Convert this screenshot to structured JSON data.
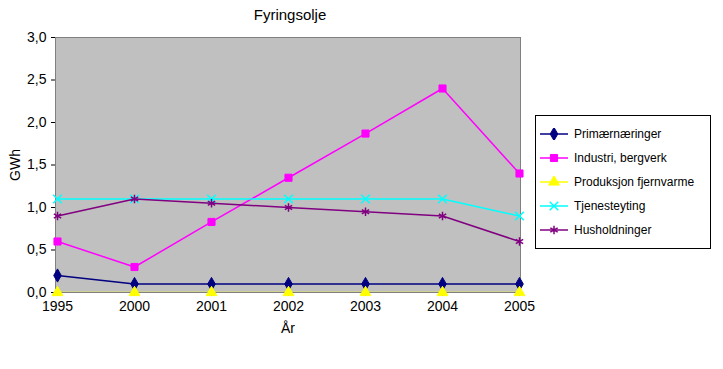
{
  "chart_data": {
    "type": "line",
    "title": "Fyringsolje",
    "x_label": "År",
    "y_label": "GWh",
    "categories": [
      "1995",
      "2000",
      "2001",
      "2002",
      "2003",
      "2004",
      "2005"
    ],
    "ylim": [
      0,
      3.0
    ],
    "yticks": [
      {
        "value": 0,
        "label": "0,0"
      },
      {
        "value": 0.5,
        "label": "0,5"
      },
      {
        "value": 1.0,
        "label": "1,0"
      },
      {
        "value": 1.5,
        "label": "1,5"
      },
      {
        "value": 2.0,
        "label": "2,0"
      },
      {
        "value": 2.5,
        "label": "2,5"
      },
      {
        "value": 3.0,
        "label": "3,0"
      }
    ],
    "grid": false,
    "legend": "right",
    "series": [
      {
        "name": "Primærnæringer",
        "color": "#000080",
        "marker": "diamond",
        "values": [
          0.2,
          0.1,
          0.1,
          0.1,
          0.1,
          0.1,
          0.1
        ]
      },
      {
        "name": "Industri, bergverk",
        "color": "#ff00ff",
        "marker": "square",
        "values": [
          0.6,
          0.3,
          0.83,
          1.35,
          1.87,
          2.4,
          1.4
        ]
      },
      {
        "name": "Produksjon fjernvarme",
        "color": "#ffff00",
        "marker": "triangle",
        "values": [
          0,
          0,
          0,
          0,
          0,
          0,
          0
        ]
      },
      {
        "name": "Tjenesteyting",
        "color": "#00ffff",
        "marker": "times",
        "values": [
          1.1,
          1.1,
          1.1,
          1.1,
          1.1,
          1.1,
          0.9
        ]
      },
      {
        "name": "Husholdninger",
        "color": "#800080",
        "marker": "asterisk",
        "values": [
          0.9,
          1.1,
          1.05,
          1.0,
          0.95,
          0.9,
          0.6
        ]
      }
    ]
  }
}
